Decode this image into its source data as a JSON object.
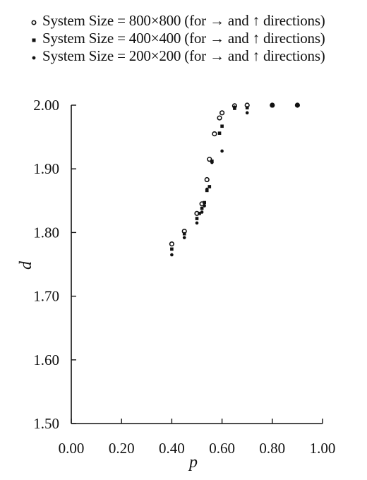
{
  "chart_data": {
    "type": "scatter",
    "title": "",
    "xlabel": "p",
    "ylabel": "d",
    "xlim": [
      0.0,
      1.0
    ],
    "ylim": [
      1.5,
      2.0
    ],
    "x_ticks": [
      0.0,
      0.2,
      0.4,
      0.6,
      0.8,
      1.0
    ],
    "y_ticks": [
      1.5,
      1.6,
      1.7,
      1.8,
      1.9,
      2.0
    ],
    "x_tick_labels": [
      "0.00",
      "0.20",
      "0.40",
      "0.60",
      "0.80",
      "1.00"
    ],
    "y_tick_labels": [
      "1.50",
      "1.60",
      "1.70",
      "1.80",
      "1.90",
      "2.00"
    ],
    "grid": false,
    "legend_position": "top-left, above plot",
    "series": [
      {
        "name": "System Size = 800×800 (for → and ↑ directions)",
        "marker": "open-circle",
        "color": "#111111",
        "points": [
          [
            0.4,
            1.782
          ],
          [
            0.45,
            1.802
          ],
          [
            0.5,
            1.83
          ],
          [
            0.52,
            1.845
          ],
          [
            0.54,
            1.883
          ],
          [
            0.55,
            1.915
          ],
          [
            0.57,
            1.955
          ],
          [
            0.59,
            1.98
          ],
          [
            0.6,
            1.988
          ],
          [
            0.65,
            1.999
          ],
          [
            0.7,
            2.0
          ],
          [
            0.8,
            2.0
          ],
          [
            0.9,
            2.0
          ]
        ]
      },
      {
        "name": "System Size = 400×400 (for → and ↑ directions)",
        "marker": "filled-square",
        "color": "#111111",
        "points": [
          [
            0.4,
            1.774
          ],
          [
            0.45,
            1.798
          ],
          [
            0.5,
            1.822
          ],
          [
            0.51,
            1.83
          ],
          [
            0.52,
            1.838
          ],
          [
            0.53,
            1.847
          ],
          [
            0.54,
            1.866
          ],
          [
            0.55,
            1.872
          ],
          [
            0.56,
            1.912
          ],
          [
            0.59,
            1.956
          ],
          [
            0.6,
            1.967
          ],
          [
            0.65,
            1.995
          ],
          [
            0.7,
            1.996
          ],
          [
            0.8,
            1.999
          ],
          [
            0.9,
            2.0
          ]
        ]
      },
      {
        "name": "System Size = 200×200 (for → and ↑ directions)",
        "marker": "filled-dot",
        "color": "#111111",
        "points": [
          [
            0.4,
            1.765
          ],
          [
            0.45,
            1.792
          ],
          [
            0.5,
            1.815
          ],
          [
            0.52,
            1.832
          ],
          [
            0.53,
            1.842
          ],
          [
            0.54,
            1.868
          ],
          [
            0.56,
            1.91
          ],
          [
            0.6,
            1.928
          ],
          [
            0.65,
            1.997
          ],
          [
            0.7,
            1.988
          ],
          [
            0.8,
            2.0
          ],
          [
            0.9,
            1.999
          ]
        ]
      }
    ]
  }
}
